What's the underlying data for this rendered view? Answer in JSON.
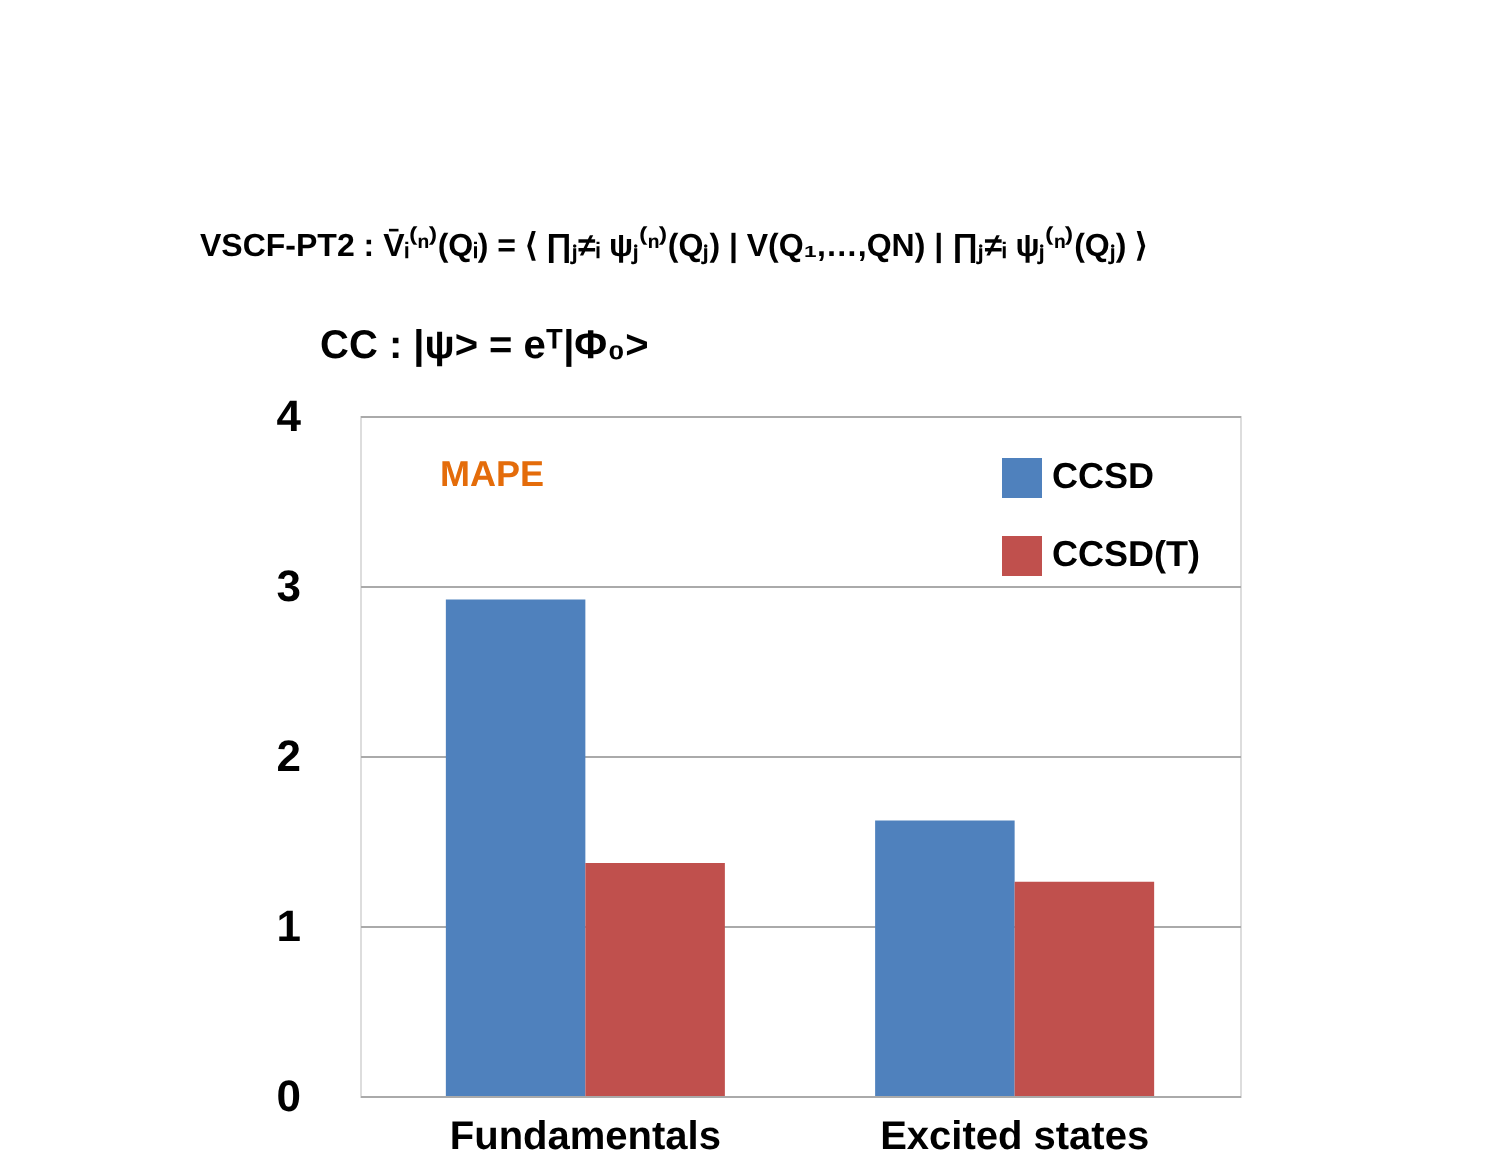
{
  "chart_data": {
    "type": "bar",
    "categories": [
      "Fundamentals",
      "Excited states"
    ],
    "series": [
      {
        "name": "CCSD",
        "color": "#4f81bd",
        "values": [
          2.92,
          1.62
        ]
      },
      {
        "name": "CCSD(T)",
        "color": "#c0504d",
        "values": [
          1.37,
          1.26
        ]
      }
    ],
    "ylim": [
      0,
      4
    ],
    "yticks": [
      0,
      1,
      2,
      3,
      4
    ],
    "grid": "y",
    "legend": "top right",
    "annotations": [
      "VSCF-PT2 :  V̄ᵢ⁽ⁿ⁾(Qᵢ) = ⟨ ∏ⱼ≠ᵢ ψⱼ⁽ⁿ⁾(Qⱼ) | V(Q₁,…,QN) | ∏ⱼ≠ᵢ ψⱼ⁽ⁿ⁾(Qⱼ) ⟩",
      "CC :  |ψ> = eᵀ|Φ₀>",
      "MAPE"
    ]
  }
}
